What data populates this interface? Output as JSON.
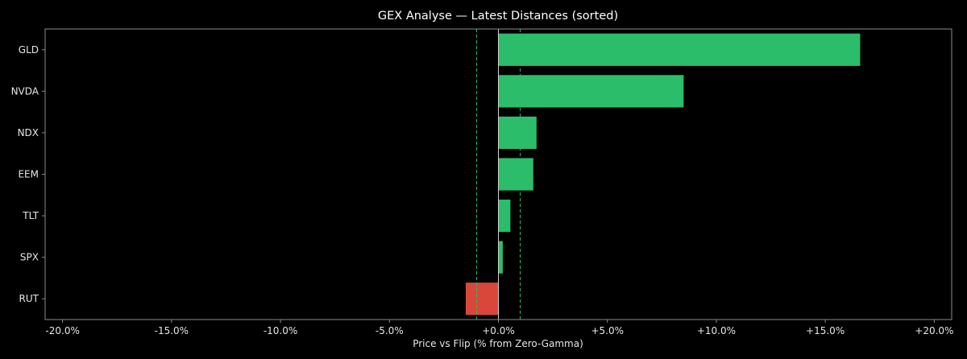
{
  "chart_data": {
    "type": "bar",
    "orientation": "horizontal",
    "title": "GEX Analyse — Latest Distances (sorted)",
    "xlabel": "Price vs Flip (% from Zero-Gamma)",
    "ylabel": "",
    "xlim": [
      -20.8,
      20.8
    ],
    "xticks": [
      -20,
      -15,
      -10,
      -5,
      0,
      5,
      10,
      15,
      20
    ],
    "xtick_labels": [
      "-20.0%",
      "-15.0%",
      "-10.0%",
      "-5.0%",
      "+0.0%",
      "+5.0%",
      "+10.0%",
      "+15.0%",
      "+20.0%"
    ],
    "categories": [
      "GLD",
      "NVDA",
      "NDX",
      "EEM",
      "TLT",
      "SPX",
      "RUT"
    ],
    "values": [
      16.6,
      8.5,
      1.75,
      1.6,
      0.55,
      0.2,
      -1.5
    ],
    "threshold_lines": [
      -1.0,
      1.0
    ],
    "grid": false,
    "legend": "none",
    "colors": {
      "positive": "#2bbd6a",
      "negative": "#d9473a",
      "zero_line": "#cfcfcf",
      "threshold": "#2bbd6a",
      "frame": "#8c8c8c",
      "background": "#000000"
    }
  }
}
